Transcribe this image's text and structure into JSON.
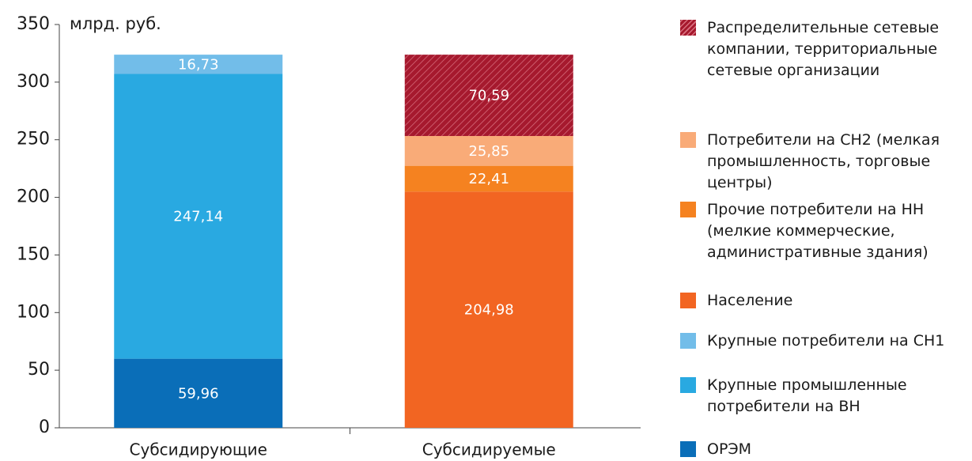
{
  "chart_data": {
    "type": "stacked_bar",
    "y_label": "млрд. руб.",
    "categories": [
      "Субсидирующие",
      "Субсидируемые"
    ],
    "ylim": [
      0,
      350
    ],
    "yticks": [
      0,
      50,
      100,
      150,
      200,
      250,
      300,
      350
    ],
    "series": [
      {
        "name": "ОРЭМ",
        "color": "#0a6eb8",
        "values": [
          59.96,
          null
        ],
        "value_labels": [
          "59,96",
          null
        ]
      },
      {
        "name": "Крупные промышленные потребители на ВН",
        "color": "#29a9e1",
        "values": [
          247.14,
          null
        ],
        "value_labels": [
          "247,14",
          null
        ]
      },
      {
        "name": "Крупные потребители на СН1",
        "color": "#72bde9",
        "values": [
          16.73,
          null
        ],
        "value_labels": [
          "16,73",
          null
        ]
      },
      {
        "name": "Население",
        "color": "#f26522",
        "values": [
          null,
          204.98
        ],
        "value_labels": [
          null,
          "204,98"
        ]
      },
      {
        "name": "Прочие потребители на НН (мелкие коммерческие, административные здания)",
        "color": "#f58220",
        "values": [
          null,
          22.41
        ],
        "value_labels": [
          null,
          "22,41"
        ]
      },
      {
        "name": "Потребители на СН2 (мелкая промышленность, торговые центры)",
        "color": "#f9ab78",
        "values": [
          null,
          25.85
        ],
        "value_labels": [
          null,
          "25,85"
        ]
      },
      {
        "name": "Распределительные сетевые компании, территориальные сетевые организации",
        "color": "#a6192e",
        "hatch": true,
        "values": [
          null,
          70.59
        ],
        "value_labels": [
          null,
          "70,59"
        ]
      }
    ]
  }
}
